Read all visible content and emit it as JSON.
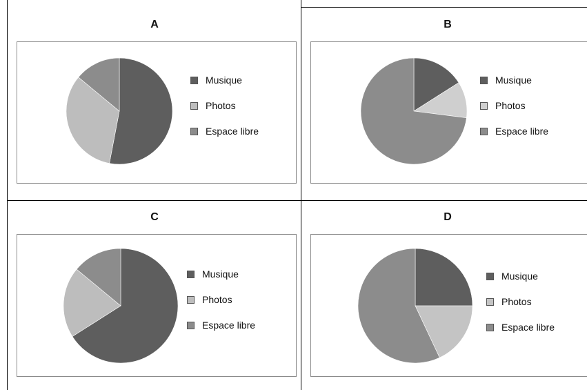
{
  "chart_data": [
    {
      "type": "pie",
      "title": "A",
      "categories": [
        "Musique",
        "Photos",
        "Espace libre"
      ],
      "values": [
        53,
        33,
        14
      ],
      "colors": [
        "#5e5e5e",
        "#bdbdbd",
        "#8c8c8c"
      ],
      "legend": "right"
    },
    {
      "type": "pie",
      "title": "B",
      "categories": [
        "Musique",
        "Photos",
        "Espace libre"
      ],
      "values": [
        16,
        11,
        73
      ],
      "colors": [
        "#5e5e5e",
        "#cfcfcf",
        "#8c8c8c"
      ],
      "legend": "right"
    },
    {
      "type": "pie",
      "title": "C",
      "categories": [
        "Musique",
        "Photos",
        "Espace libre"
      ],
      "values": [
        66,
        20,
        14
      ],
      "colors": [
        "#5e5e5e",
        "#bdbdbd",
        "#8c8c8c"
      ],
      "legend": "right"
    },
    {
      "type": "pie",
      "title": "D",
      "categories": [
        "Musique",
        "Photos",
        "Espace libre"
      ],
      "values": [
        25,
        18,
        57
      ],
      "colors": [
        "#5e5e5e",
        "#c4c4c4",
        "#8c8c8c"
      ],
      "legend": "right"
    }
  ]
}
